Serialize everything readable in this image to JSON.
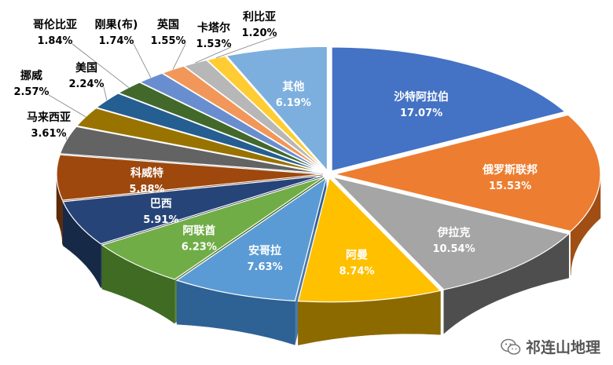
{
  "chart_data": {
    "type": "pie",
    "style": "3d-exploded",
    "title": "",
    "slices": [
      {
        "label": "沙特阿拉伯",
        "value": 17.07,
        "value_text": "17.07%",
        "color": "#4472C4",
        "side": "#2F5597",
        "label_pos": "inside",
        "text_color": "#ffffff"
      },
      {
        "label": "俄罗斯联邦",
        "value": 15.53,
        "value_text": "15.53%",
        "color": "#ED7D31",
        "side": "#A04E14",
        "label_pos": "inside",
        "text_color": "#ffffff"
      },
      {
        "label": "伊拉克",
        "value": 10.54,
        "value_text": "10.54%",
        "color": "#A5A5A5",
        "side": "#4E4E4E",
        "label_pos": "inside",
        "text_color": "#ffffff"
      },
      {
        "label": "阿曼",
        "value": 8.74,
        "value_text": "8.74%",
        "color": "#FFC000",
        "side": "#8C6A00",
        "label_pos": "inside",
        "text_color": "#ffffff"
      },
      {
        "label": "安哥拉",
        "value": 7.63,
        "value_text": "7.63%",
        "color": "#5B9BD5",
        "side": "#2E6194",
        "label_pos": "inside",
        "text_color": "#ffffff"
      },
      {
        "label": "阿联酋",
        "value": 6.23,
        "value_text": "6.23%",
        "color": "#70AD47",
        "side": "#3F6B22",
        "label_pos": "inside",
        "text_color": "#ffffff"
      },
      {
        "label": "巴西",
        "value": 5.91,
        "value_text": "5.91%",
        "color": "#264478",
        "side": "#162946",
        "label_pos": "inside",
        "text_color": "#ffffff"
      },
      {
        "label": "科威特",
        "value": 5.88,
        "value_text": "5.88%",
        "color": "#9E480E",
        "side": "#5E2A07",
        "label_pos": "inside",
        "text_color": "#ffffff"
      },
      {
        "label": "马来西亚",
        "value": 3.61,
        "value_text": "3.61%",
        "color": "#636363",
        "side": "#3A3A3A",
        "label_pos": "outside",
        "text_color": "#000000"
      },
      {
        "label": "挪威",
        "value": 2.57,
        "value_text": "2.57%",
        "color": "#997300",
        "side": "#5C4500",
        "label_pos": "outside",
        "text_color": "#000000"
      },
      {
        "label": "美国",
        "value": 2.24,
        "value_text": "2.24%",
        "color": "#255E91",
        "side": "#16395A",
        "label_pos": "outside",
        "text_color": "#000000"
      },
      {
        "label": "哥伦比亚",
        "value": 1.84,
        "value_text": "1.84%",
        "color": "#43682B",
        "side": "#283F19",
        "label_pos": "outside",
        "text_color": "#000000"
      },
      {
        "label": "刚果(布)",
        "value": 1.74,
        "value_text": "1.74%",
        "color": "#698ED0",
        "side": "#3D5E99",
        "label_pos": "outside",
        "text_color": "#000000"
      },
      {
        "label": "英国",
        "value": 1.55,
        "value_text": "1.55%",
        "color": "#F1975A",
        "side": "#A45D2B",
        "label_pos": "outside",
        "text_color": "#000000"
      },
      {
        "label": "卡塔尔",
        "value": 1.53,
        "value_text": "1.53%",
        "color": "#B7B7B7",
        "side": "#6E6E6E",
        "label_pos": "outside",
        "text_color": "#000000"
      },
      {
        "label": "利比亚",
        "value": 1.2,
        "value_text": "1.20%",
        "color": "#FFCD33",
        "side": "#A88414",
        "label_pos": "outside",
        "text_color": "#000000"
      },
      {
        "label": "其他",
        "value": 6.19,
        "value_text": "6.19%",
        "color": "#7CAFDD",
        "side": "#4A7DAB",
        "label_pos": "inside",
        "text_color": "#ffffff"
      }
    ]
  },
  "watermark": {
    "text": "祁连山地理",
    "icon": "wechat-icon"
  }
}
